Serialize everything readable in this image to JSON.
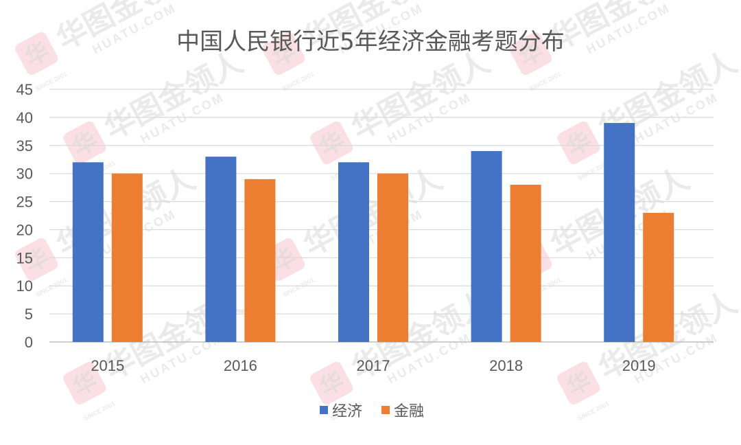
{
  "watermark": {
    "brand": "华图金领人",
    "site": "HUATU.COM",
    "logo_glyph": "华",
    "since": "SINCE 2001",
    "color": "#f2a7b3"
  },
  "chart_data": {
    "type": "bar",
    "title": "中国人民银行近5年经济金融考题分布",
    "categories": [
      "2015",
      "2016",
      "2017",
      "2018",
      "2019"
    ],
    "series": [
      {
        "name": "经济",
        "values": [
          32,
          33,
          32,
          34,
          39
        ],
        "color": "#4472c4"
      },
      {
        "name": "金融",
        "values": [
          30,
          29,
          30,
          28,
          23
        ],
        "color": "#ed7d31"
      }
    ],
    "ylim": [
      0,
      45
    ],
    "yticks": [
      0,
      5,
      10,
      15,
      20,
      25,
      30,
      35,
      40,
      45
    ],
    "grid": true,
    "legend": "bottom",
    "xlabel": "",
    "ylabel": ""
  }
}
